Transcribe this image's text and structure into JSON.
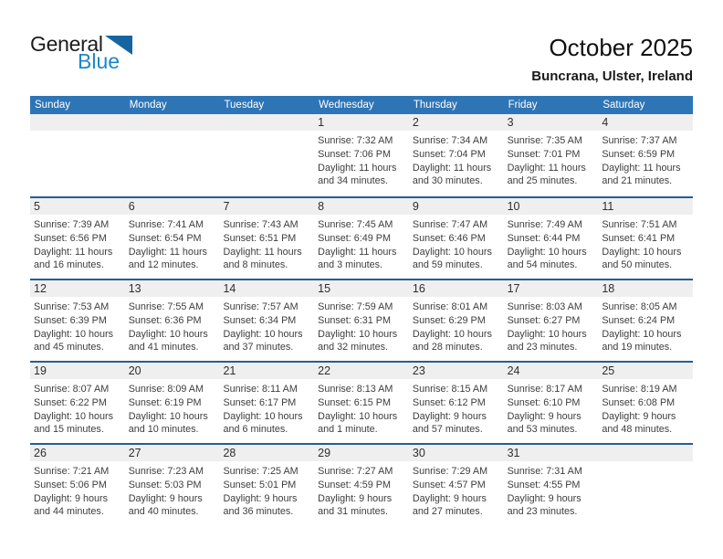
{
  "logo": {
    "text_general": "General",
    "text_blue": "Blue"
  },
  "page_header": {
    "title": "October 2025",
    "subtitle": "Buncrana, Ulster, Ireland"
  },
  "colors": {
    "header_bg": "#2E75B6",
    "separator": "#255E91",
    "day_band_bg": "#EFEFEF",
    "logo_blue": "#1E87C5",
    "logo_triangle": "#1566A0"
  },
  "calendar": {
    "day_headers": [
      "Sunday",
      "Monday",
      "Tuesday",
      "Wednesday",
      "Thursday",
      "Friday",
      "Saturday"
    ],
    "weeks": [
      [
        null,
        null,
        null,
        {
          "date": "1",
          "sunrise": "Sunrise: 7:32 AM",
          "sunset": "Sunset: 7:06 PM",
          "daylight_lines": [
            "Daylight: 11 hours",
            "and 34 minutes."
          ]
        },
        {
          "date": "2",
          "sunrise": "Sunrise: 7:34 AM",
          "sunset": "Sunset: 7:04 PM",
          "daylight_lines": [
            "Daylight: 11 hours",
            "and 30 minutes."
          ]
        },
        {
          "date": "3",
          "sunrise": "Sunrise: 7:35 AM",
          "sunset": "Sunset: 7:01 PM",
          "daylight_lines": [
            "Daylight: 11 hours",
            "and 25 minutes."
          ]
        },
        {
          "date": "4",
          "sunrise": "Sunrise: 7:37 AM",
          "sunset": "Sunset: 6:59 PM",
          "daylight_lines": [
            "Daylight: 11 hours",
            "and 21 minutes."
          ]
        }
      ],
      [
        {
          "date": "5",
          "sunrise": "Sunrise: 7:39 AM",
          "sunset": "Sunset: 6:56 PM",
          "daylight_lines": [
            "Daylight: 11 hours",
            "and 16 minutes."
          ]
        },
        {
          "date": "6",
          "sunrise": "Sunrise: 7:41 AM",
          "sunset": "Sunset: 6:54 PM",
          "daylight_lines": [
            "Daylight: 11 hours",
            "and 12 minutes."
          ]
        },
        {
          "date": "7",
          "sunrise": "Sunrise: 7:43 AM",
          "sunset": "Sunset: 6:51 PM",
          "daylight_lines": [
            "Daylight: 11 hours",
            "and 8 minutes."
          ]
        },
        {
          "date": "8",
          "sunrise": "Sunrise: 7:45 AM",
          "sunset": "Sunset: 6:49 PM",
          "daylight_lines": [
            "Daylight: 11 hours",
            "and 3 minutes."
          ]
        },
        {
          "date": "9",
          "sunrise": "Sunrise: 7:47 AM",
          "sunset": "Sunset: 6:46 PM",
          "daylight_lines": [
            "Daylight: 10 hours",
            "and 59 minutes."
          ]
        },
        {
          "date": "10",
          "sunrise": "Sunrise: 7:49 AM",
          "sunset": "Sunset: 6:44 PM",
          "daylight_lines": [
            "Daylight: 10 hours",
            "and 54 minutes."
          ]
        },
        {
          "date": "11",
          "sunrise": "Sunrise: 7:51 AM",
          "sunset": "Sunset: 6:41 PM",
          "daylight_lines": [
            "Daylight: 10 hours",
            "and 50 minutes."
          ]
        }
      ],
      [
        {
          "date": "12",
          "sunrise": "Sunrise: 7:53 AM",
          "sunset": "Sunset: 6:39 PM",
          "daylight_lines": [
            "Daylight: 10 hours",
            "and 45 minutes."
          ]
        },
        {
          "date": "13",
          "sunrise": "Sunrise: 7:55 AM",
          "sunset": "Sunset: 6:36 PM",
          "daylight_lines": [
            "Daylight: 10 hours",
            "and 41 minutes."
          ]
        },
        {
          "date": "14",
          "sunrise": "Sunrise: 7:57 AM",
          "sunset": "Sunset: 6:34 PM",
          "daylight_lines": [
            "Daylight: 10 hours",
            "and 37 minutes."
          ]
        },
        {
          "date": "15",
          "sunrise": "Sunrise: 7:59 AM",
          "sunset": "Sunset: 6:31 PM",
          "daylight_lines": [
            "Daylight: 10 hours",
            "and 32 minutes."
          ]
        },
        {
          "date": "16",
          "sunrise": "Sunrise: 8:01 AM",
          "sunset": "Sunset: 6:29 PM",
          "daylight_lines": [
            "Daylight: 10 hours",
            "and 28 minutes."
          ]
        },
        {
          "date": "17",
          "sunrise": "Sunrise: 8:03 AM",
          "sunset": "Sunset: 6:27 PM",
          "daylight_lines": [
            "Daylight: 10 hours",
            "and 23 minutes."
          ]
        },
        {
          "date": "18",
          "sunrise": "Sunrise: 8:05 AM",
          "sunset": "Sunset: 6:24 PM",
          "daylight_lines": [
            "Daylight: 10 hours",
            "and 19 minutes."
          ]
        }
      ],
      [
        {
          "date": "19",
          "sunrise": "Sunrise: 8:07 AM",
          "sunset": "Sunset: 6:22 PM",
          "daylight_lines": [
            "Daylight: 10 hours",
            "and 15 minutes."
          ]
        },
        {
          "date": "20",
          "sunrise": "Sunrise: 8:09 AM",
          "sunset": "Sunset: 6:19 PM",
          "daylight_lines": [
            "Daylight: 10 hours",
            "and 10 minutes."
          ]
        },
        {
          "date": "21",
          "sunrise": "Sunrise: 8:11 AM",
          "sunset": "Sunset: 6:17 PM",
          "daylight_lines": [
            "Daylight: 10 hours",
            "and 6 minutes."
          ]
        },
        {
          "date": "22",
          "sunrise": "Sunrise: 8:13 AM",
          "sunset": "Sunset: 6:15 PM",
          "daylight_lines": [
            "Daylight: 10 hours",
            "and 1 minute."
          ]
        },
        {
          "date": "23",
          "sunrise": "Sunrise: 8:15 AM",
          "sunset": "Sunset: 6:12 PM",
          "daylight_lines": [
            "Daylight: 9 hours",
            "and 57 minutes."
          ]
        },
        {
          "date": "24",
          "sunrise": "Sunrise: 8:17 AM",
          "sunset": "Sunset: 6:10 PM",
          "daylight_lines": [
            "Daylight: 9 hours",
            "and 53 minutes."
          ]
        },
        {
          "date": "25",
          "sunrise": "Sunrise: 8:19 AM",
          "sunset": "Sunset: 6:08 PM",
          "daylight_lines": [
            "Daylight: 9 hours",
            "and 48 minutes."
          ]
        }
      ],
      [
        {
          "date": "26",
          "sunrise": "Sunrise: 7:21 AM",
          "sunset": "Sunset: 5:06 PM",
          "daylight_lines": [
            "Daylight: 9 hours",
            "and 44 minutes."
          ]
        },
        {
          "date": "27",
          "sunrise": "Sunrise: 7:23 AM",
          "sunset": "Sunset: 5:03 PM",
          "daylight_lines": [
            "Daylight: 9 hours",
            "and 40 minutes."
          ]
        },
        {
          "date": "28",
          "sunrise": "Sunrise: 7:25 AM",
          "sunset": "Sunset: 5:01 PM",
          "daylight_lines": [
            "Daylight: 9 hours",
            "and 36 minutes."
          ]
        },
        {
          "date": "29",
          "sunrise": "Sunrise: 7:27 AM",
          "sunset": "Sunset: 4:59 PM",
          "daylight_lines": [
            "Daylight: 9 hours",
            "and 31 minutes."
          ]
        },
        {
          "date": "30",
          "sunrise": "Sunrise: 7:29 AM",
          "sunset": "Sunset: 4:57 PM",
          "daylight_lines": [
            "Daylight: 9 hours",
            "and 27 minutes."
          ]
        },
        {
          "date": "31",
          "sunrise": "Sunrise: 7:31 AM",
          "sunset": "Sunset: 4:55 PM",
          "daylight_lines": [
            "Daylight: 9 hours",
            "and 23 minutes."
          ]
        },
        null
      ]
    ]
  }
}
